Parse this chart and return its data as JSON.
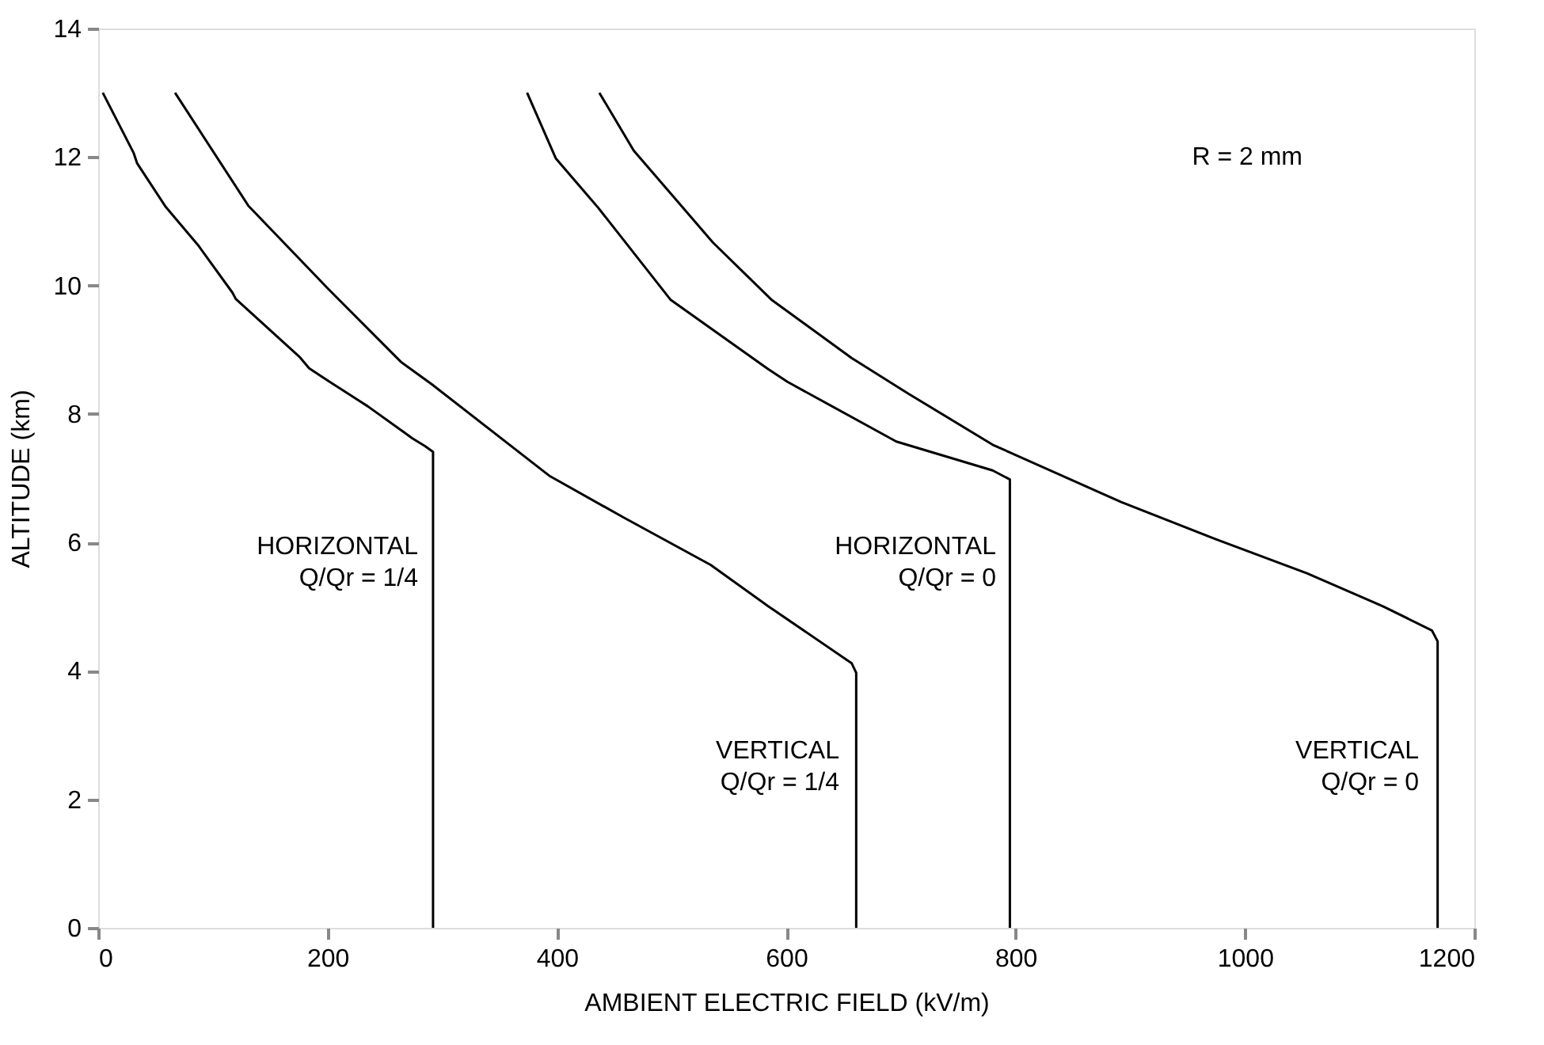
{
  "chart_data": {
    "type": "line",
    "xlabel": "AMBIENT ELECTRIC FIELD (kV/m)",
    "ylabel": "ALTITUDE (km)",
    "xlim": [
      0,
      1200
    ],
    "xticks": [
      0,
      200,
      400,
      600,
      800,
      1000,
      1200
    ],
    "ylim": [
      0,
      14
    ],
    "yticks": [
      0,
      2,
      4,
      6,
      8,
      10,
      12,
      14
    ],
    "grid": false,
    "marker": "none",
    "line_style": "solid",
    "series": [
      {
        "color": "#000000",
        "x": [
          4,
          31,
          34,
          59,
          87,
          117,
          120,
          176,
          184,
          201,
          235,
          274,
          285,
          292,
          292
        ],
        "values": [
          13,
          12.06,
          11.9,
          11.22,
          10.63,
          9.89,
          9.79,
          8.88,
          8.71,
          8.51,
          8.12,
          7.62,
          7.5,
          7.41,
          0
        ]
      },
      {
        "color": "#000000",
        "x": [
          67,
          131,
          201,
          264,
          291,
          394,
          458,
          534,
          584,
          657,
          661,
          661
        ],
        "values": [
          13,
          11.24,
          9.94,
          8.81,
          8.46,
          7.03,
          6.39,
          5.65,
          5.01,
          4.12,
          3.97,
          0
        ]
      },
      {
        "color": "#000000",
        "x": [
          374,
          399,
          436,
          499,
          584,
          601,
          696,
          780,
          795,
          795
        ],
        "values": [
          13,
          11.98,
          11.21,
          9.78,
          8.7,
          8.5,
          7.57,
          7.12,
          6.98,
          0
        ]
      },
      {
        "color": "#000000",
        "x": [
          437,
          467,
          536,
          587,
          657,
          707,
          780,
          892,
          976,
          1054,
          1121,
          1163,
          1168,
          1168
        ],
        "values": [
          13,
          12.1,
          10.67,
          9.78,
          8.87,
          8.31,
          7.52,
          6.63,
          6.04,
          5.52,
          5.0,
          4.63,
          4.46,
          0
        ]
      }
    ],
    "annotations": [
      "HORIZONTAL\nQ/Qr = 1/4",
      "VERTICAL\nQ/Qr = 1/4",
      "HORIZONTAL\nQ/Qr = 0",
      "VERTICAL\nQ/Qr = 0",
      "R = 2 mm"
    ]
  }
}
